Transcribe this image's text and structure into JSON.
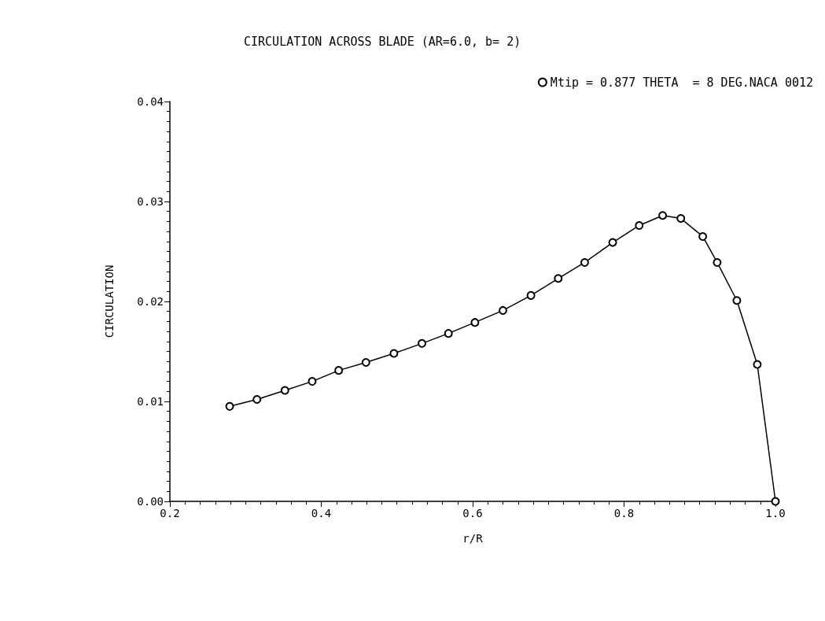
{
  "chart_data": {
    "type": "line",
    "title": "CIRCULATION ACROSS BLADE (AR=6.0, b= 2)",
    "xlabel": "r/R",
    "ylabel": "CIRCULATION",
    "x": [
      0.279,
      0.315,
      0.352,
      0.388,
      0.423,
      0.459,
      0.496,
      0.533,
      0.568,
      0.603,
      0.64,
      0.677,
      0.713,
      0.748,
      0.785,
      0.82,
      0.851,
      0.875,
      0.904,
      0.923,
      0.949,
      0.976,
      1.0
    ],
    "series": [
      {
        "name": "Mtip = 0.877 THETA  = 8 DEG.NACA 0012",
        "color": "#000000",
        "values": [
          0.0095,
          0.0102,
          0.0111,
          0.012,
          0.0131,
          0.0139,
          0.0148,
          0.0158,
          0.0168,
          0.0179,
          0.0191,
          0.0206,
          0.0223,
          0.0239,
          0.0259,
          0.0276,
          0.0286,
          0.0283,
          0.0265,
          0.0239,
          0.0201,
          0.0137,
          0.0
        ]
      }
    ],
    "xlim": [
      0.2,
      1.0
    ],
    "xticks": [
      0.2,
      0.4,
      0.6,
      0.8,
      {
        "value": 1.0,
        "label": "1.0"
      }
    ],
    "ylim": [
      0,
      0.04
    ],
    "yticks": [
      {
        "value": 0,
        "label": "0.00"
      },
      0.01,
      0.02,
      0.03,
      0.04
    ],
    "grid": false,
    "legend": "top right",
    "marker": "circle",
    "line_style": "solid"
  }
}
